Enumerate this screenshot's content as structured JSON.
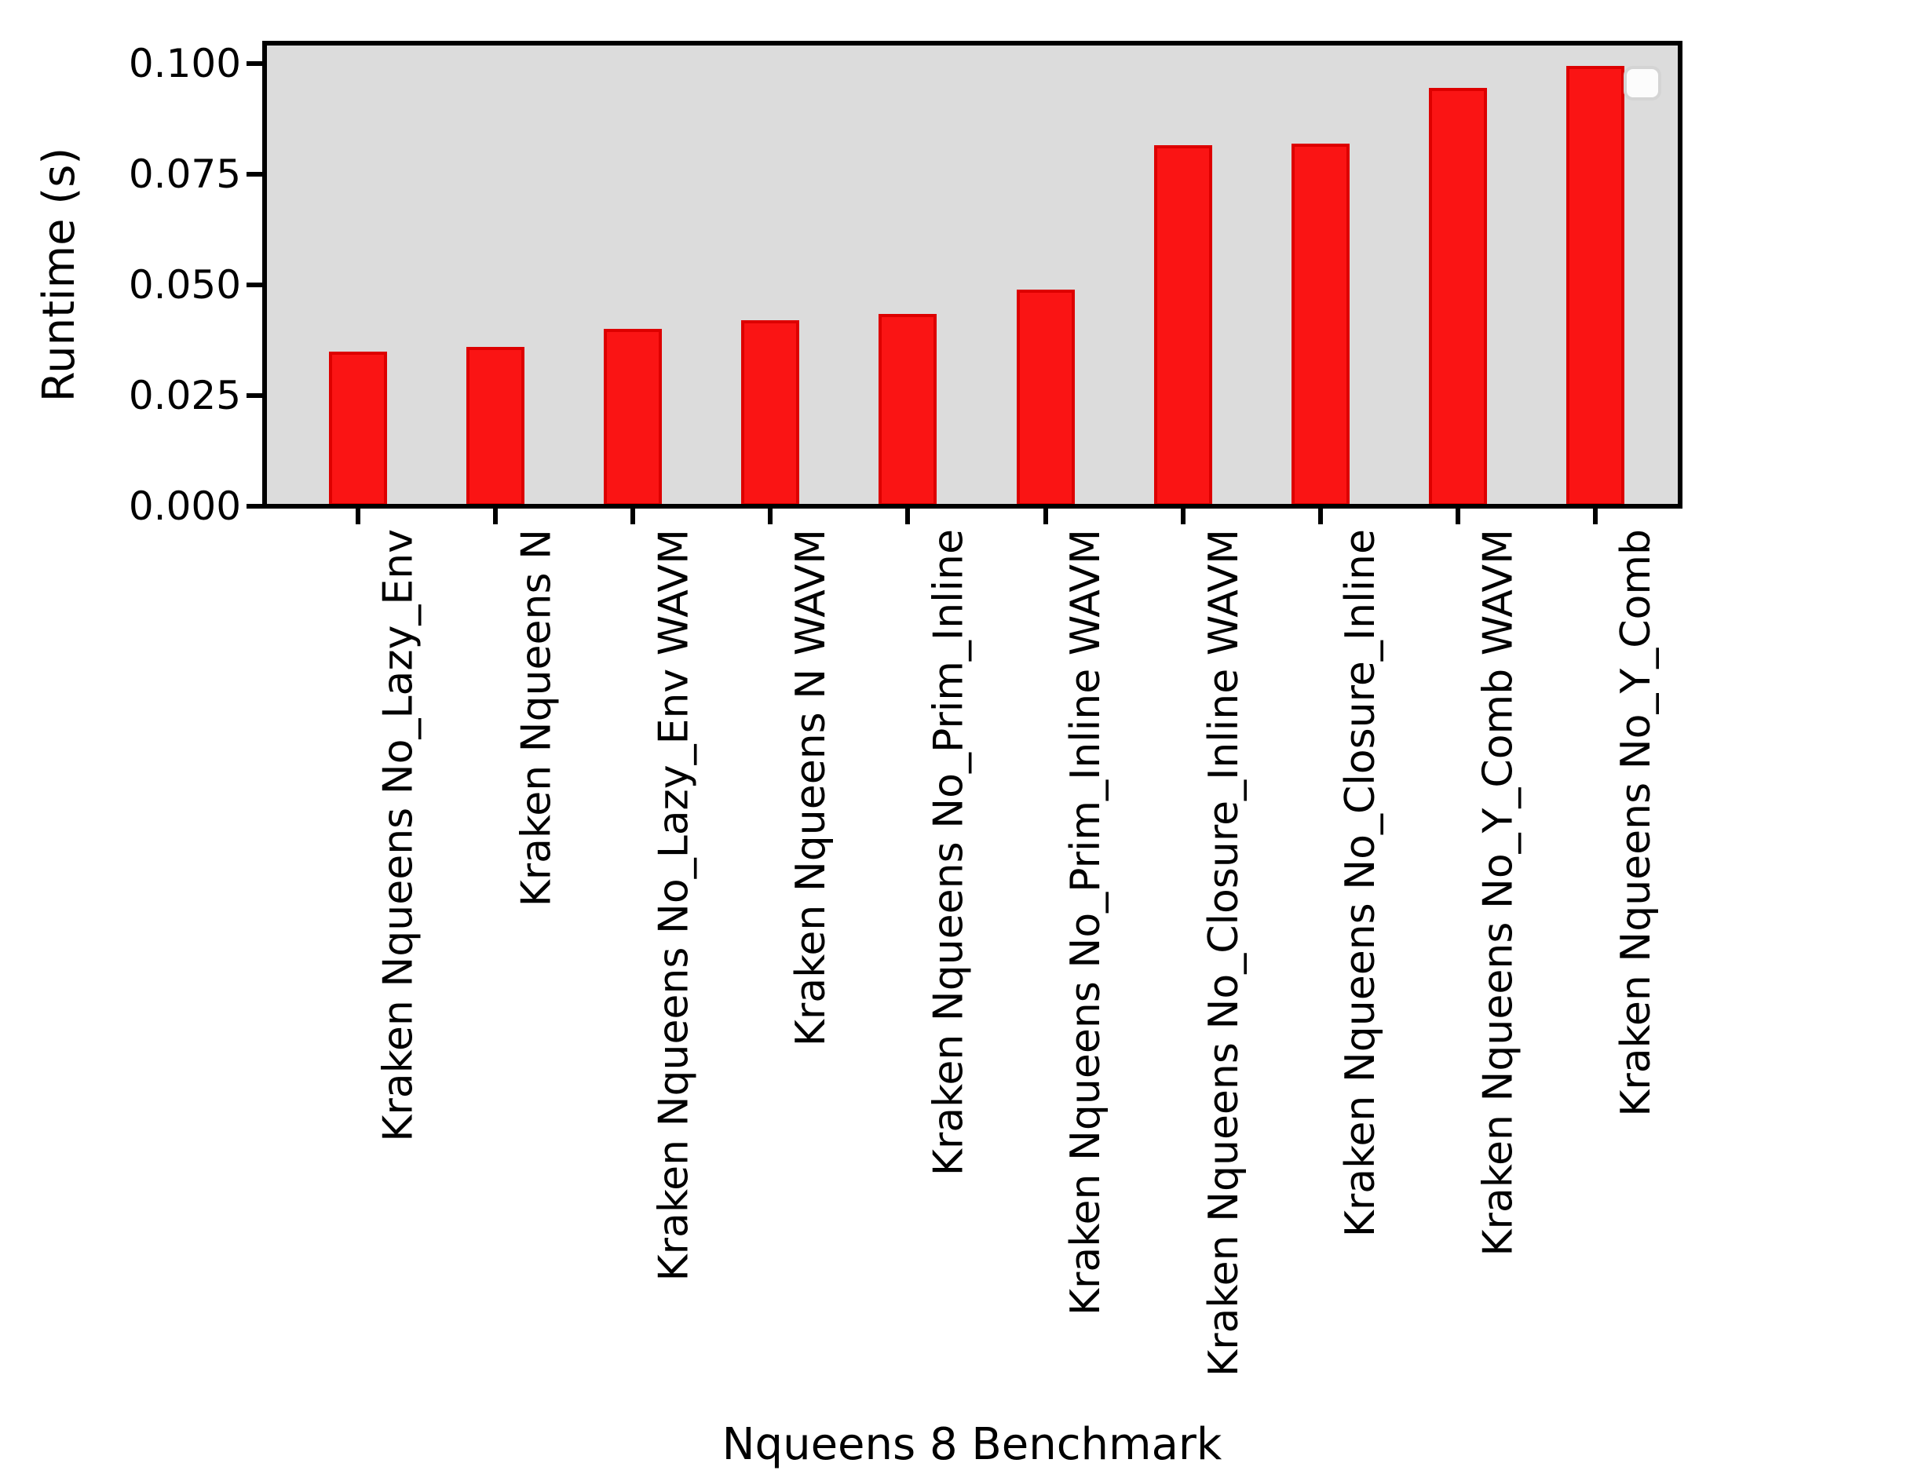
{
  "figure": {
    "y_axis_label": "Runtime (s)",
    "x_axis_label": "Nqueens 8 Benchmark"
  },
  "chart_data": {
    "type": "bar",
    "title": "",
    "xlabel": "Nqueens 8 Benchmark",
    "ylabel": "Runtime (s)",
    "categories": [
      "Kraken Nqueens No_Lazy_Env",
      "Kraken Nqueens N",
      "Kraken Nqueens No_Lazy_Env WAVM",
      "Kraken Nqueens N WAVM",
      "Kraken Nqueens No_Prim_Inline",
      "Kraken Nqueens No_Prim_Inline WAVM",
      "Kraken Nqueens No_Closure_Inline WAVM",
      "Kraken Nqueens No_Closure_Inline",
      "Kraken Nqueens No_Y_Comb WAVM",
      "Kraken Nqueens No_Y_Comb"
    ],
    "values": [
      0.035,
      0.036,
      0.04,
      0.042,
      0.0435,
      0.049,
      0.0815,
      0.082,
      0.0945,
      0.0995
    ],
    "ytick_labels": [
      "0.000",
      "0.025",
      "0.050",
      "0.075",
      "0.100"
    ],
    "ytick_values": [
      0.0,
      0.025,
      0.05,
      0.075,
      0.1
    ],
    "ylim": [
      0,
      0.1045
    ],
    "xtick_rotation_deg": 90,
    "grid": false,
    "legend": {
      "position": "upper-right",
      "entries": [],
      "visible_empty_box": true
    },
    "colors": {
      "bar_fill": "#fa1414",
      "bar_edge": "#dd0000",
      "plot_background": "#dcdcdc",
      "figure_background": "#ffffff",
      "spine": "#000000",
      "text": "#000000",
      "legend_background": "#fcfcfc",
      "legend_border": "#d4d4d4"
    }
  }
}
